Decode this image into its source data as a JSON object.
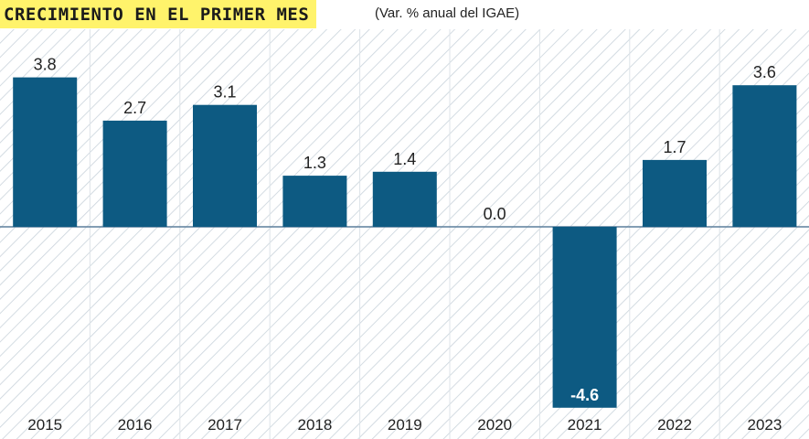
{
  "chart_data": {
    "type": "bar",
    "title": "CRECIMIENTO EN EL PRIMER MES",
    "subtitle": "(Var. % anual del IGAE)",
    "categories": [
      "2015",
      "2016",
      "2017",
      "2018",
      "2019",
      "2020",
      "2021",
      "2022",
      "2023"
    ],
    "values": [
      3.8,
      2.7,
      3.1,
      1.3,
      1.4,
      0.0,
      -4.6,
      1.7,
      3.6
    ],
    "value_labels": [
      "3.8",
      "2.7",
      "3.1",
      "1.3",
      "1.4",
      "0.0",
      "-4.6",
      "1.7",
      "3.6"
    ],
    "xlabel": "",
    "ylabel": "",
    "ylim": [
      -4.6,
      3.8
    ],
    "grid": false,
    "colors": {
      "bar": "#0d5a82",
      "zero_line": "#5c7f9c",
      "hatch": "#c9d3db",
      "column_divider": "#dde3e8",
      "title_bg": "#fff36b"
    }
  }
}
